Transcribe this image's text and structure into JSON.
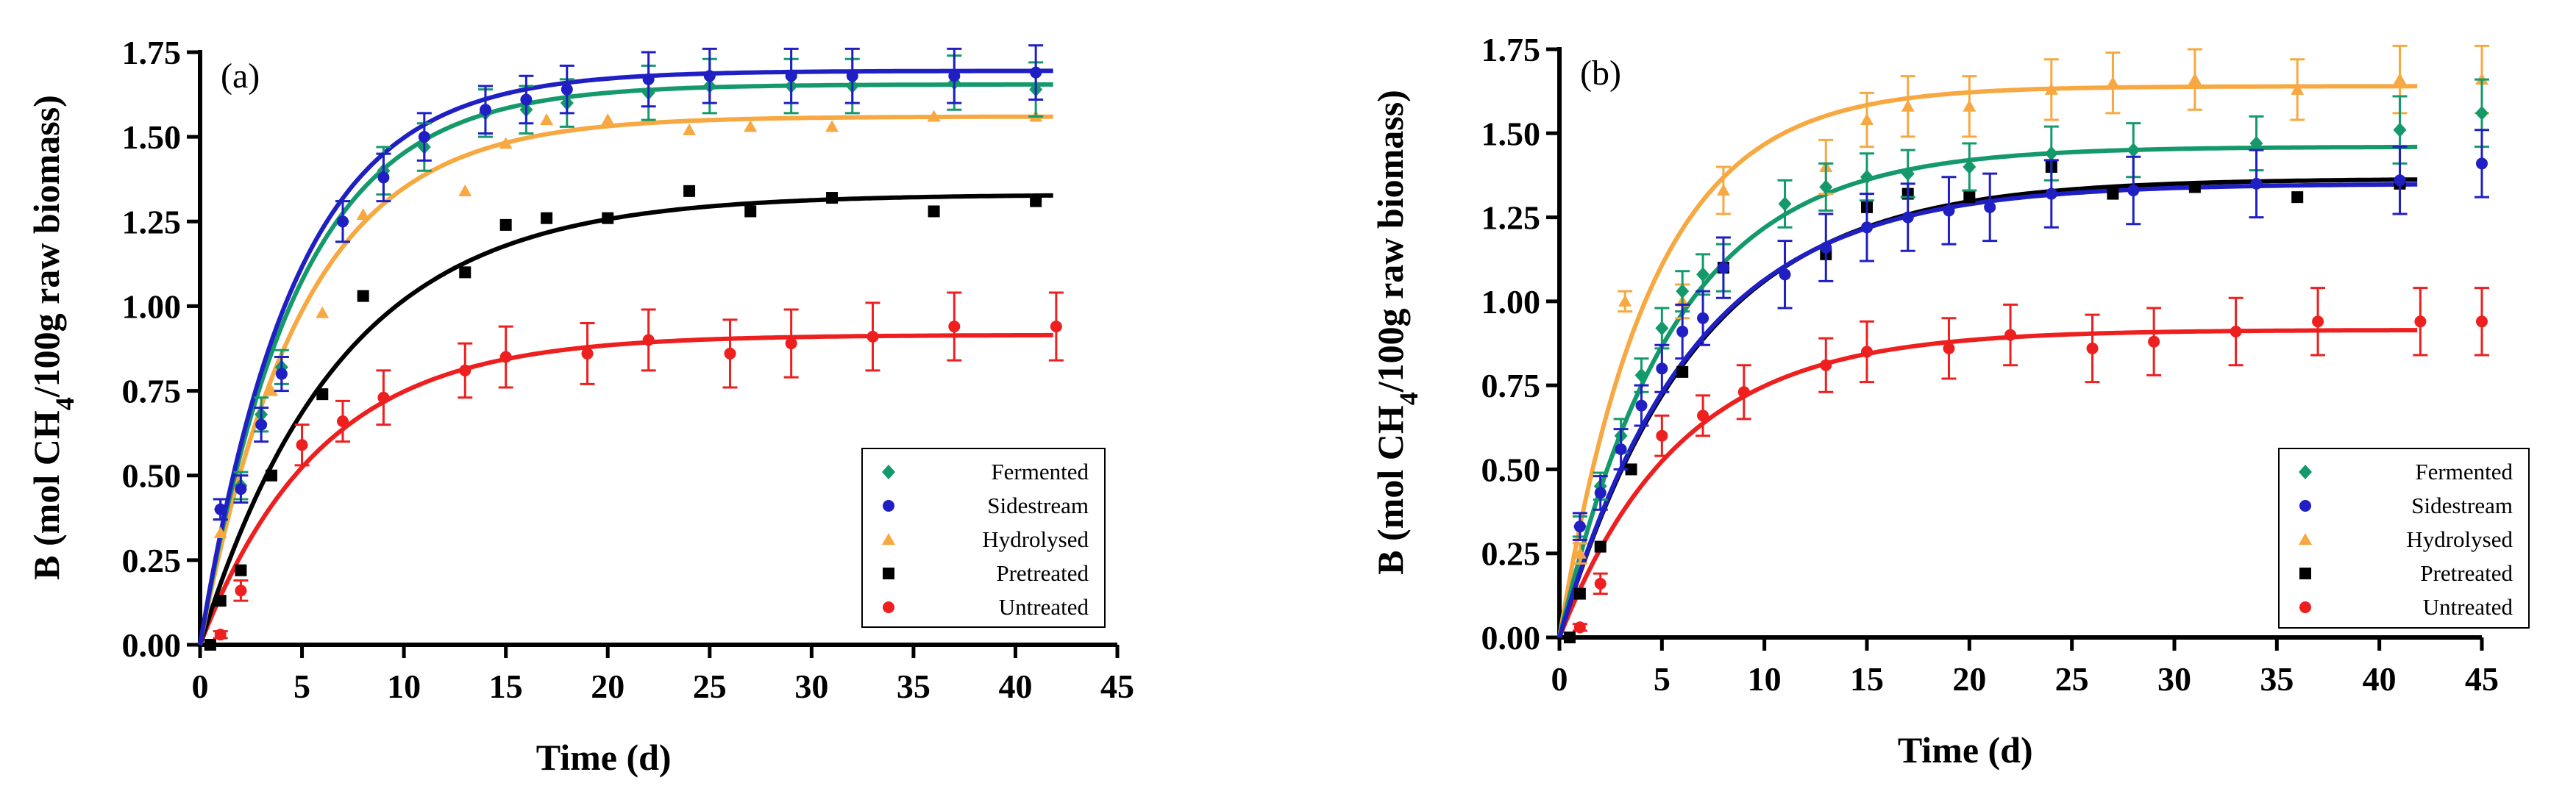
{
  "colors": {
    "Fermented": "#14996b",
    "Sidestream": "#1f1fc4",
    "Hydrolysed": "#f7a841",
    "Pretreated": "#000000",
    "Untreated": "#ee1f1f"
  },
  "chart_data": [
    {
      "type": "scatter",
      "panel_label": "(a)",
      "xlabel": "Time (d)",
      "ylabel_pre": "B (mol CH",
      "ylabel_sub": "4",
      "ylabel_post": "/100g raw biomass)",
      "xlim": [
        0,
        45
      ],
      "ylim": [
        0,
        1.75
      ],
      "xticks": [
        0,
        5,
        10,
        15,
        20,
        25,
        30,
        35,
        40,
        45
      ],
      "xtick_labels": [
        "0",
        "5",
        "10",
        "15",
        "20",
        "25",
        "30",
        "35",
        "40",
        "45"
      ],
      "yticks": [
        0,
        0.25,
        0.5,
        0.75,
        1.0,
        1.25,
        1.5,
        1.75
      ],
      "ytick_labels": [
        "0.00",
        "0.25",
        "0.50",
        "0.75",
        "1.00",
        "1.25",
        "1.50",
        "1.75"
      ],
      "legend_position": "bottom-right",
      "series": [
        {
          "name": "Fermented",
          "marker": "diamond",
          "x": [
            1,
            2,
            3,
            4,
            7,
            9,
            11,
            14,
            16,
            18,
            22,
            25,
            29,
            32,
            37,
            41
          ],
          "y": [
            0.4,
            0.47,
            0.68,
            0.82,
            1.25,
            1.4,
            1.47,
            1.57,
            1.58,
            1.6,
            1.63,
            1.65,
            1.65,
            1.65,
            1.66,
            1.64
          ],
          "err": [
            0.03,
            0.04,
            0.05,
            0.05,
            0.06,
            0.07,
            0.07,
            0.07,
            0.07,
            0.07,
            0.08,
            0.08,
            0.08,
            0.08,
            0.08,
            0.08
          ],
          "fit": {
            "max": 1.655,
            "k": 0.21
          }
        },
        {
          "name": "Sidestream",
          "marker": "circle",
          "x": [
            1,
            2,
            3,
            4,
            7,
            9,
            11,
            14,
            16,
            18,
            22,
            25,
            29,
            32,
            37,
            41
          ],
          "y": [
            0.4,
            0.46,
            0.65,
            0.8,
            1.25,
            1.38,
            1.5,
            1.58,
            1.61,
            1.64,
            1.67,
            1.68,
            1.68,
            1.68,
            1.68,
            1.69
          ],
          "err": [
            0.03,
            0.04,
            0.05,
            0.05,
            0.06,
            0.07,
            0.07,
            0.07,
            0.07,
            0.07,
            0.08,
            0.08,
            0.08,
            0.08,
            0.08,
            0.08
          ],
          "fit": {
            "max": 1.695,
            "k": 0.215
          }
        },
        {
          "name": "Hydrolysed",
          "marker": "triangle",
          "x": [
            1,
            3.5,
            6,
            8,
            13,
            15,
            17,
            20,
            24,
            27,
            31,
            36,
            41
          ],
          "y": [
            0.33,
            0.75,
            0.98,
            1.27,
            1.34,
            1.48,
            1.55,
            1.55,
            1.52,
            1.53,
            1.53,
            1.56,
            1.56
          ],
          "fit": {
            "max": 1.56,
            "k": 0.2
          }
        },
        {
          "name": "Pretreated",
          "marker": "square",
          "x": [
            0.5,
            1,
            2,
            3.5,
            6,
            8,
            13,
            15,
            17,
            20,
            24,
            27,
            31,
            36,
            41
          ],
          "y": [
            0.0,
            0.13,
            0.22,
            0.5,
            0.74,
            1.03,
            1.1,
            1.24,
            1.26,
            1.26,
            1.34,
            1.28,
            1.32,
            1.28,
            1.31
          ],
          "fit": {
            "max": 1.33,
            "k": 0.145
          }
        },
        {
          "name": "Untreated",
          "marker": "circle",
          "x": [
            0.5,
            1,
            2,
            5,
            7,
            9,
            13,
            15,
            19,
            22,
            26,
            29,
            33,
            37,
            42
          ],
          "y": [
            0.0,
            0.03,
            0.16,
            0.59,
            0.66,
            0.73,
            0.81,
            0.85,
            0.86,
            0.9,
            0.86,
            0.89,
            0.91,
            0.94,
            0.94
          ],
          "err": [
            0.0,
            0.01,
            0.03,
            0.06,
            0.06,
            0.08,
            0.08,
            0.09,
            0.09,
            0.09,
            0.1,
            0.1,
            0.1,
            0.1,
            0.1
          ],
          "fit": {
            "max": 0.915,
            "k": 0.17
          }
        }
      ]
    },
    {
      "type": "scatter",
      "panel_label": "(b)",
      "xlabel": "Time (d)",
      "ylabel_pre": "B (mol CH",
      "ylabel_sub": "4",
      "ylabel_post": "/100g raw biomass)",
      "xlim": [
        0,
        45
      ],
      "ylim": [
        0,
        1.75
      ],
      "xticks": [
        0,
        5,
        10,
        15,
        20,
        25,
        30,
        35,
        40,
        45
      ],
      "xtick_labels": [
        "0",
        "5",
        "10",
        "15",
        "20",
        "25",
        "30",
        "35",
        "40",
        "45"
      ],
      "yticks": [
        0,
        0.25,
        0.5,
        0.75,
        1.0,
        1.25,
        1.5,
        1.75
      ],
      "ytick_labels": [
        "0.00",
        "0.25",
        "0.50",
        "0.75",
        "1.00",
        "1.25",
        "1.50",
        "1.75"
      ],
      "legend_position": "bottom-right",
      "series": [
        {
          "name": "Fermented",
          "marker": "diamond",
          "x": [
            1,
            2,
            3,
            4,
            5,
            6,
            7,
            8,
            11,
            13,
            15,
            17,
            20,
            24,
            28,
            34,
            41,
            45
          ],
          "y": [
            0.33,
            0.45,
            0.6,
            0.78,
            0.92,
            1.03,
            1.08,
            1.1,
            1.29,
            1.34,
            1.37,
            1.38,
            1.4,
            1.44,
            1.45,
            1.47,
            1.51,
            1.56
          ],
          "err": [
            0.03,
            0.04,
            0.05,
            0.05,
            0.06,
            0.06,
            0.06,
            0.07,
            0.07,
            0.07,
            0.07,
            0.07,
            0.07,
            0.08,
            0.08,
            0.08,
            0.1,
            0.1
          ],
          "fit": {
            "max": 1.46,
            "k": 0.18
          }
        },
        {
          "name": "Sidestream",
          "marker": "circle",
          "x": [
            1,
            2,
            3,
            4,
            5,
            6,
            7,
            8,
            11,
            13,
            15,
            17,
            19,
            21,
            24,
            28,
            34,
            41,
            45
          ],
          "y": [
            0.33,
            0.43,
            0.56,
            0.69,
            0.8,
            0.91,
            0.95,
            1.1,
            1.08,
            1.16,
            1.22,
            1.25,
            1.27,
            1.28,
            1.32,
            1.33,
            1.35,
            1.36,
            1.41
          ],
          "err": [
            0.04,
            0.05,
            0.06,
            0.06,
            0.07,
            0.08,
            0.08,
            0.09,
            0.1,
            0.1,
            0.1,
            0.1,
            0.1,
            0.1,
            0.1,
            0.1,
            0.1,
            0.1,
            0.1
          ],
          "fit": {
            "max": 1.35,
            "k": 0.155
          }
        },
        {
          "name": "Hydrolysed",
          "marker": "triangle",
          "x": [
            1,
            3.2,
            6,
            8,
            13,
            15,
            17,
            20,
            24,
            27,
            31,
            36,
            41,
            45
          ],
          "y": [
            0.25,
            1.0,
            1.0,
            1.33,
            1.4,
            1.54,
            1.58,
            1.58,
            1.63,
            1.65,
            1.66,
            1.63,
            1.66,
            1.66
          ],
          "err": [
            0.03,
            0.03,
            0.05,
            0.07,
            0.08,
            0.08,
            0.09,
            0.09,
            0.09,
            0.09,
            0.09,
            0.09,
            0.1,
            0.1
          ],
          "fit": {
            "max": 1.64,
            "k": 0.225
          }
        },
        {
          "name": "Pretreated",
          "marker": "square",
          "x": [
            0.5,
            1,
            2,
            3.5,
            6,
            8,
            13,
            15,
            17,
            20,
            24,
            27,
            31,
            36,
            41
          ],
          "y": [
            0.0,
            0.13,
            0.27,
            0.5,
            0.79,
            1.1,
            1.14,
            1.28,
            1.32,
            1.31,
            1.4,
            1.32,
            1.34,
            1.31,
            1.35
          ],
          "fit": {
            "max": 1.365,
            "k": 0.15
          }
        },
        {
          "name": "Untreated",
          "marker": "circle",
          "x": [
            0.5,
            1,
            2,
            5,
            7,
            9,
            13,
            15,
            19,
            22,
            26,
            29,
            33,
            37,
            42,
            45
          ],
          "y": [
            0.0,
            0.03,
            0.16,
            0.6,
            0.66,
            0.73,
            0.81,
            0.85,
            0.86,
            0.9,
            0.86,
            0.88,
            0.91,
            0.94,
            0.94,
            0.94
          ],
          "err": [
            0.0,
            0.01,
            0.03,
            0.06,
            0.06,
            0.08,
            0.08,
            0.09,
            0.09,
            0.09,
            0.1,
            0.1,
            0.1,
            0.1,
            0.1,
            0.1
          ],
          "fit": {
            "max": 0.915,
            "k": 0.17
          }
        }
      ]
    }
  ]
}
